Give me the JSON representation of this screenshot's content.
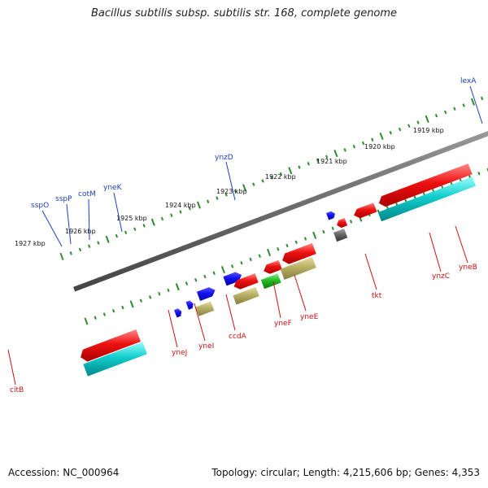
{
  "title": "Bacillus subtilis subsp. subtilis str. 168, complete genome",
  "accession": "Accession: NC_000964",
  "topology": "Topology: circular; Length: 4,215,606 bp; Genes: 4,353",
  "colors": {
    "plus_label": "#1a3fbf",
    "minus_label": "#cc1111",
    "tick": "#2e8b2e",
    "backbone": "#777777",
    "red": "#ee1111",
    "blue": "#1111ee",
    "olive": "#b8b066",
    "green": "#22bb22",
    "cyan": "#11cccc",
    "gray": "#666666",
    "pink": "#ee2299",
    "orange": "#ee8811"
  },
  "scale_labels": [
    "1919 kbp",
    "1920 kbp",
    "1921 kbp",
    "1922 kbp",
    "1923 kbp",
    "1924 kbp",
    "1925 kbp",
    "1926 kbp",
    "1927 kbp"
  ],
  "genes_plus": [
    "lexA",
    "ynzD",
    "yneK",
    "cotM",
    "sspP",
    "sspO"
  ],
  "genes_minus": [
    "yneB",
    "ynzC",
    "tkt",
    "yneE",
    "yneF",
    "ccdA",
    "yneI",
    "yneJ",
    "citB"
  ]
}
